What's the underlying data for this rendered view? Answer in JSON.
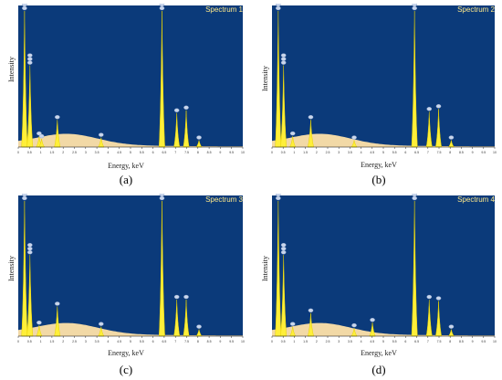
{
  "chart_data": [
    {
      "type": "area",
      "title": "Spectrum 1",
      "xlabel": "Energy, keV",
      "ylabel": "Intensity",
      "caption": "(a)",
      "xlim": [
        0,
        10
      ],
      "background": "#0b3a7a",
      "fill_color": "#ffef3a",
      "base_color": "#f2d9a6",
      "peaks": [
        {
          "x": 0.28,
          "y": 1.0
        },
        {
          "x": 0.52,
          "y": 0.6
        },
        {
          "x": 0.93,
          "y": 0.08
        },
        {
          "x": 1.04,
          "y": 0.06
        },
        {
          "x": 1.74,
          "y": 0.2
        },
        {
          "x": 3.69,
          "y": 0.07
        },
        {
          "x": 6.4,
          "y": 1.0
        },
        {
          "x": 7.06,
          "y": 0.25
        },
        {
          "x": 7.48,
          "y": 0.27
        },
        {
          "x": 8.05,
          "y": 0.05
        }
      ]
    },
    {
      "type": "area",
      "title": "Spectrum 2",
      "xlabel": "Energy, keV",
      "ylabel": "Intensity",
      "caption": "(b)",
      "xlim": [
        0,
        10
      ],
      "background": "#0b3a7a",
      "fill_color": "#ffef3a",
      "base_color": "#f2d9a6",
      "peaks": [
        {
          "x": 0.28,
          "y": 1.0
        },
        {
          "x": 0.52,
          "y": 0.6
        },
        {
          "x": 0.93,
          "y": 0.08
        },
        {
          "x": 1.74,
          "y": 0.2
        },
        {
          "x": 3.69,
          "y": 0.05
        },
        {
          "x": 6.4,
          "y": 1.0
        },
        {
          "x": 7.06,
          "y": 0.26
        },
        {
          "x": 7.48,
          "y": 0.28
        },
        {
          "x": 8.05,
          "y": 0.05
        }
      ]
    },
    {
      "type": "area",
      "title": "Spectrum 3",
      "xlabel": "Energy, keV",
      "ylabel": "Intensity",
      "caption": "(c)",
      "xlim": [
        0,
        10
      ],
      "background": "#0b3a7a",
      "fill_color": "#ffef3a",
      "base_color": "#f2d9a6",
      "peaks": [
        {
          "x": 0.28,
          "y": 1.0
        },
        {
          "x": 0.52,
          "y": 0.6
        },
        {
          "x": 0.93,
          "y": 0.08
        },
        {
          "x": 1.74,
          "y": 0.22
        },
        {
          "x": 3.69,
          "y": 0.07
        },
        {
          "x": 6.4,
          "y": 1.0
        },
        {
          "x": 7.06,
          "y": 0.27
        },
        {
          "x": 7.48,
          "y": 0.27
        },
        {
          "x": 8.05,
          "y": 0.05
        }
      ]
    },
    {
      "type": "area",
      "title": "Spectrum 4",
      "xlabel": "Energy, keV",
      "ylabel": "Intensity",
      "caption": "(d)",
      "xlim": [
        0,
        10
      ],
      "background": "#0b3a7a",
      "fill_color": "#ffef3a",
      "base_color": "#f2d9a6",
      "peaks": [
        {
          "x": 0.28,
          "y": 1.0
        },
        {
          "x": 0.52,
          "y": 0.6
        },
        {
          "x": 0.93,
          "y": 0.07
        },
        {
          "x": 1.74,
          "y": 0.17
        },
        {
          "x": 3.69,
          "y": 0.06
        },
        {
          "x": 4.51,
          "y": 0.1
        },
        {
          "x": 6.4,
          "y": 1.0
        },
        {
          "x": 7.06,
          "y": 0.27
        },
        {
          "x": 7.48,
          "y": 0.26
        },
        {
          "x": 8.05,
          "y": 0.05
        }
      ]
    }
  ]
}
